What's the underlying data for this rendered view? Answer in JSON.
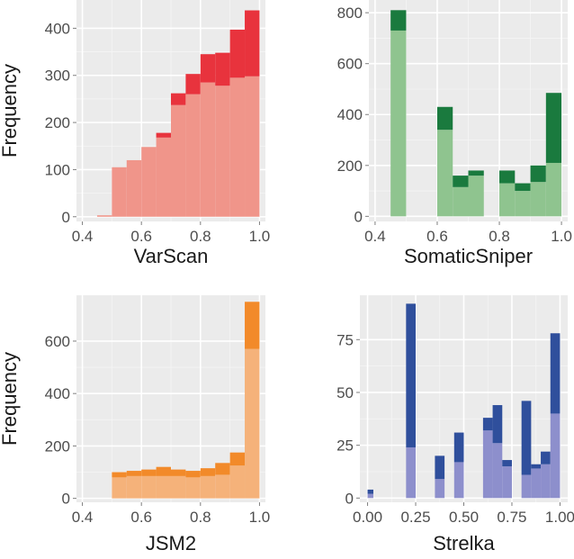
{
  "chart_data": [
    {
      "type": "bar",
      "title": "",
      "xlabel": "VarScan",
      "ylabel": "Frequency",
      "xlim": [
        0.38,
        1.02
      ],
      "ylim": [
        -10,
        460
      ],
      "xticks": [
        0.4,
        0.6,
        0.8,
        1.0
      ],
      "xtick_labels": [
        "0.4",
        "0.6",
        "0.8",
        "1.0"
      ],
      "yticks": [
        0,
        100,
        200,
        300,
        400
      ],
      "ytick_labels": [
        "0",
        "100",
        "200",
        "300",
        "400"
      ],
      "grid": true,
      "colors": {
        "light": "#f0958a",
        "dark": "#e8333d"
      },
      "bins": [
        {
          "x0": 0.45,
          "x1": 0.5,
          "light": 3,
          "dark": 0
        },
        {
          "x0": 0.5,
          "x1": 0.55,
          "light": 105,
          "dark": 0
        },
        {
          "x0": 0.55,
          "x1": 0.6,
          "light": 120,
          "dark": 0
        },
        {
          "x0": 0.6,
          "x1": 0.65,
          "light": 148,
          "dark": 0
        },
        {
          "x0": 0.65,
          "x1": 0.7,
          "light": 168,
          "dark": 10
        },
        {
          "x0": 0.7,
          "x1": 0.75,
          "light": 237,
          "dark": 25
        },
        {
          "x0": 0.75,
          "x1": 0.8,
          "light": 260,
          "dark": 43
        },
        {
          "x0": 0.8,
          "x1": 0.85,
          "light": 285,
          "dark": 60
        },
        {
          "x0": 0.85,
          "x1": 0.9,
          "light": 278,
          "dark": 70
        },
        {
          "x0": 0.9,
          "x1": 0.95,
          "light": 295,
          "dark": 102
        },
        {
          "x0": 0.95,
          "x1": 1.0,
          "light": 298,
          "dark": 140
        }
      ]
    },
    {
      "type": "bar",
      "title": "",
      "xlabel": "SomaticSniper",
      "ylabel": "",
      "xlim": [
        0.38,
        1.02
      ],
      "ylim": [
        -20,
        850
      ],
      "xticks": [
        0.4,
        0.6,
        0.8,
        1.0
      ],
      "xtick_labels": [
        "0.4",
        "0.6",
        "0.8",
        "1.0"
      ],
      "yticks": [
        0,
        200,
        400,
        600,
        800
      ],
      "ytick_labels": [
        "0",
        "200",
        "400",
        "600",
        "800"
      ],
      "grid": true,
      "colors": {
        "light": "#8fc48f",
        "dark": "#1a7a3e"
      },
      "bins": [
        {
          "x0": 0.45,
          "x1": 0.5,
          "light": 730,
          "dark": 80
        },
        {
          "x0": 0.5,
          "x1": 0.55,
          "light": 0,
          "dark": 0
        },
        {
          "x0": 0.55,
          "x1": 0.6,
          "light": 0,
          "dark": 0
        },
        {
          "x0": 0.6,
          "x1": 0.65,
          "light": 340,
          "dark": 90
        },
        {
          "x0": 0.65,
          "x1": 0.7,
          "light": 115,
          "dark": 45
        },
        {
          "x0": 0.7,
          "x1": 0.75,
          "light": 160,
          "dark": 20
        },
        {
          "x0": 0.75,
          "x1": 0.8,
          "light": 0,
          "dark": 0
        },
        {
          "x0": 0.8,
          "x1": 0.85,
          "light": 130,
          "dark": 50
        },
        {
          "x0": 0.85,
          "x1": 0.9,
          "light": 100,
          "dark": 30
        },
        {
          "x0": 0.9,
          "x1": 0.95,
          "light": 135,
          "dark": 65
        },
        {
          "x0": 0.95,
          "x1": 1.0,
          "light": 210,
          "dark": 275
        }
      ]
    },
    {
      "type": "bar",
      "title": "",
      "xlabel": "JSM2",
      "ylabel": "Frequency",
      "xlim": [
        0.38,
        1.02
      ],
      "ylim": [
        -15,
        775
      ],
      "xticks": [
        0.4,
        0.6,
        0.8,
        1.0
      ],
      "xtick_labels": [
        "0.4",
        "0.6",
        "0.8",
        "1.0"
      ],
      "yticks": [
        0,
        200,
        400,
        600
      ],
      "ytick_labels": [
        "0",
        "200",
        "400",
        "600"
      ],
      "grid": true,
      "colors": {
        "light": "#f5b27a",
        "dark": "#f28a2a"
      },
      "bins": [
        {
          "x0": 0.5,
          "x1": 0.55,
          "light": 80,
          "dark": 20
        },
        {
          "x0": 0.55,
          "x1": 0.6,
          "light": 85,
          "dark": 20
        },
        {
          "x0": 0.6,
          "x1": 0.65,
          "light": 85,
          "dark": 25
        },
        {
          "x0": 0.65,
          "x1": 0.7,
          "light": 85,
          "dark": 35
        },
        {
          "x0": 0.7,
          "x1": 0.75,
          "light": 85,
          "dark": 25
        },
        {
          "x0": 0.75,
          "x1": 0.8,
          "light": 80,
          "dark": 25
        },
        {
          "x0": 0.8,
          "x1": 0.85,
          "light": 85,
          "dark": 30
        },
        {
          "x0": 0.85,
          "x1": 0.9,
          "light": 90,
          "dark": 45
        },
        {
          "x0": 0.9,
          "x1": 0.95,
          "light": 125,
          "dark": 50
        },
        {
          "x0": 0.95,
          "x1": 1.0,
          "light": 570,
          "dark": 180
        }
      ]
    },
    {
      "type": "bar",
      "title": "",
      "xlabel": "Strelka",
      "ylabel": "",
      "xlim": [
        -0.04,
        1.04
      ],
      "ylim": [
        -2,
        96
      ],
      "xticks": [
        0.0,
        0.25,
        0.5,
        0.75,
        1.0
      ],
      "xtick_labels": [
        "0.00",
        "0.25",
        "0.50",
        "0.75",
        "1.00"
      ],
      "yticks": [
        0,
        25,
        50,
        75
      ],
      "ytick_labels": [
        "0",
        "25",
        "50",
        "75"
      ],
      "grid": true,
      "colors": {
        "light": "#8d8fcc",
        "dark": "#2f4f9c"
      },
      "bins": [
        {
          "x0": 0.0,
          "x1": 0.03,
          "light": 2,
          "dark": 2
        },
        {
          "x0": 0.2,
          "x1": 0.25,
          "light": 24,
          "dark": 68
        },
        {
          "x0": 0.35,
          "x1": 0.4,
          "light": 9,
          "dark": 11
        },
        {
          "x0": 0.45,
          "x1": 0.5,
          "light": 17,
          "dark": 14
        },
        {
          "x0": 0.6,
          "x1": 0.65,
          "light": 32,
          "dark": 6
        },
        {
          "x0": 0.65,
          "x1": 0.7,
          "light": 26,
          "dark": 18
        },
        {
          "x0": 0.7,
          "x1": 0.75,
          "light": 15,
          "dark": 3
        },
        {
          "x0": 0.8,
          "x1": 0.85,
          "light": 11,
          "dark": 35
        },
        {
          "x0": 0.85,
          "x1": 0.9,
          "light": 14,
          "dark": 2
        },
        {
          "x0": 0.9,
          "x1": 0.95,
          "light": 16,
          "dark": 6
        },
        {
          "x0": 0.95,
          "x1": 1.0,
          "light": 40,
          "dark": 38
        }
      ]
    }
  ]
}
